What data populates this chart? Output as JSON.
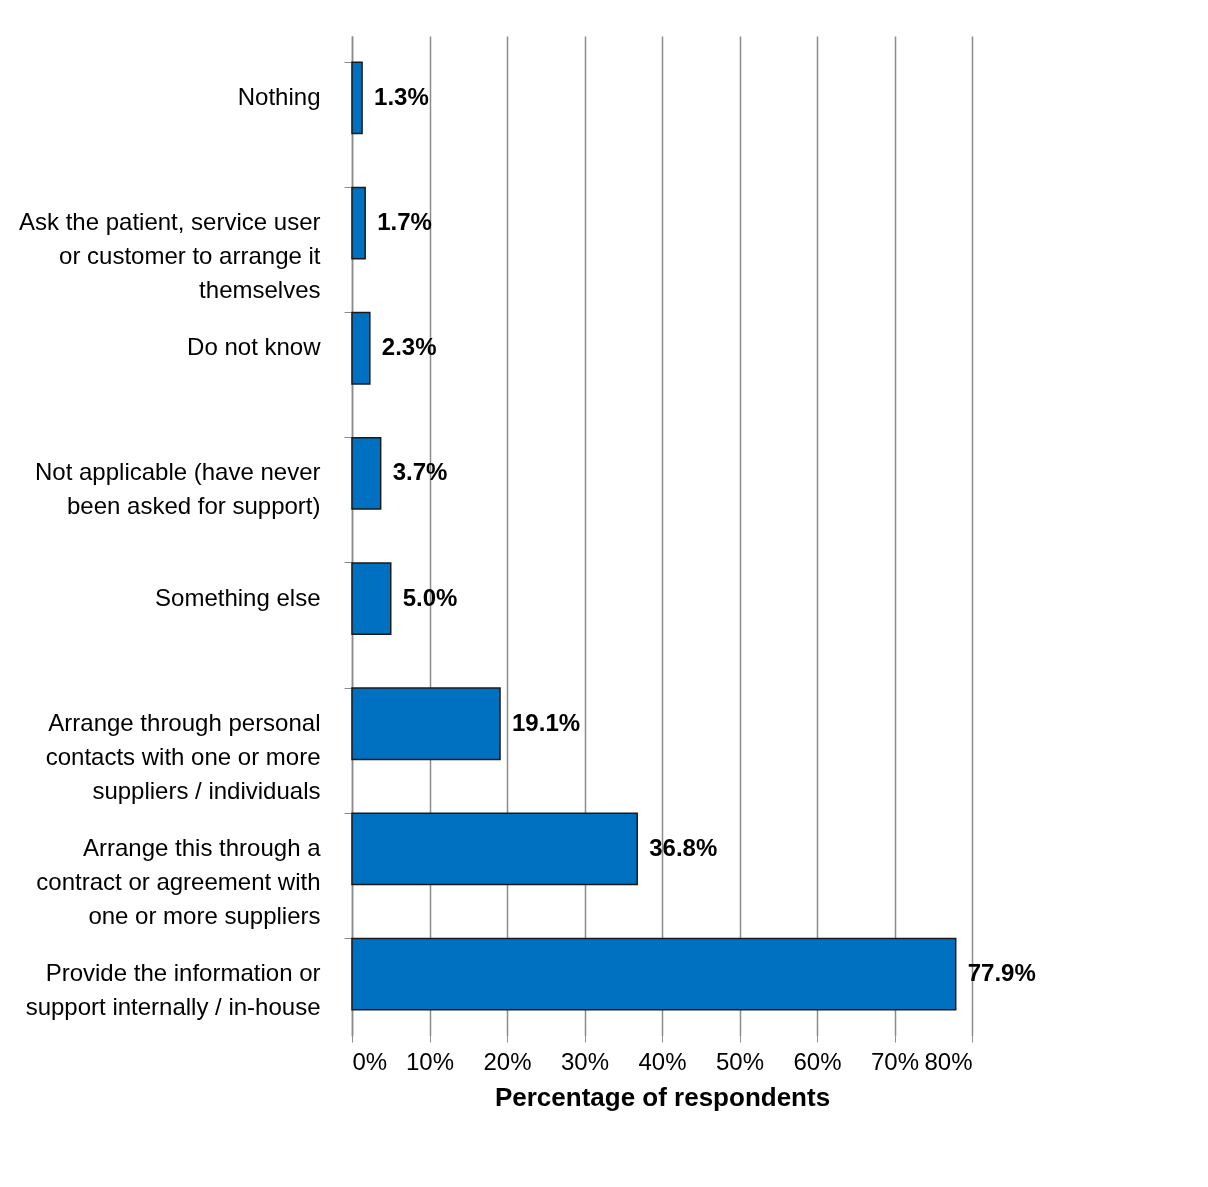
{
  "chart_data": {
    "type": "bar",
    "orientation": "horizontal",
    "categories": [
      "Nothing",
      "Ask the patient, service user or customer to arrange it themselves",
      "Do not know",
      "Not applicable (have never been asked for support)",
      "Something else",
      "Arrange through personal contacts with one or more suppliers / individuals",
      "Arrange this through a contract or agreement with one or more suppliers",
      "Provide the information or support internally / in-house"
    ],
    "values": [
      1.3,
      1.7,
      2.3,
      3.7,
      5.0,
      19.1,
      36.8,
      77.9
    ],
    "value_labels": [
      "1.3%",
      "1.7%",
      "2.3%",
      "3.7%",
      "5.0%",
      "19.1%",
      "36.8%",
      "77.9%"
    ],
    "color": "#0070c0",
    "xlabel": "Percentage of respondents",
    "xlim": [
      0,
      80
    ],
    "xticks": [
      {
        "value": 0,
        "label": "0%"
      },
      {
        "value": 10,
        "label": "10%"
      },
      {
        "value": 20,
        "label": "20%"
      },
      {
        "value": 30,
        "label": "30%"
      },
      {
        "value": 40,
        "label": "40%"
      },
      {
        "value": 50,
        "label": "50%"
      },
      {
        "value": 60,
        "label": "60%"
      },
      {
        "value": 70,
        "label": "70%"
      },
      {
        "value": 80,
        "label": "80%"
      }
    ],
    "grid": "x"
  }
}
